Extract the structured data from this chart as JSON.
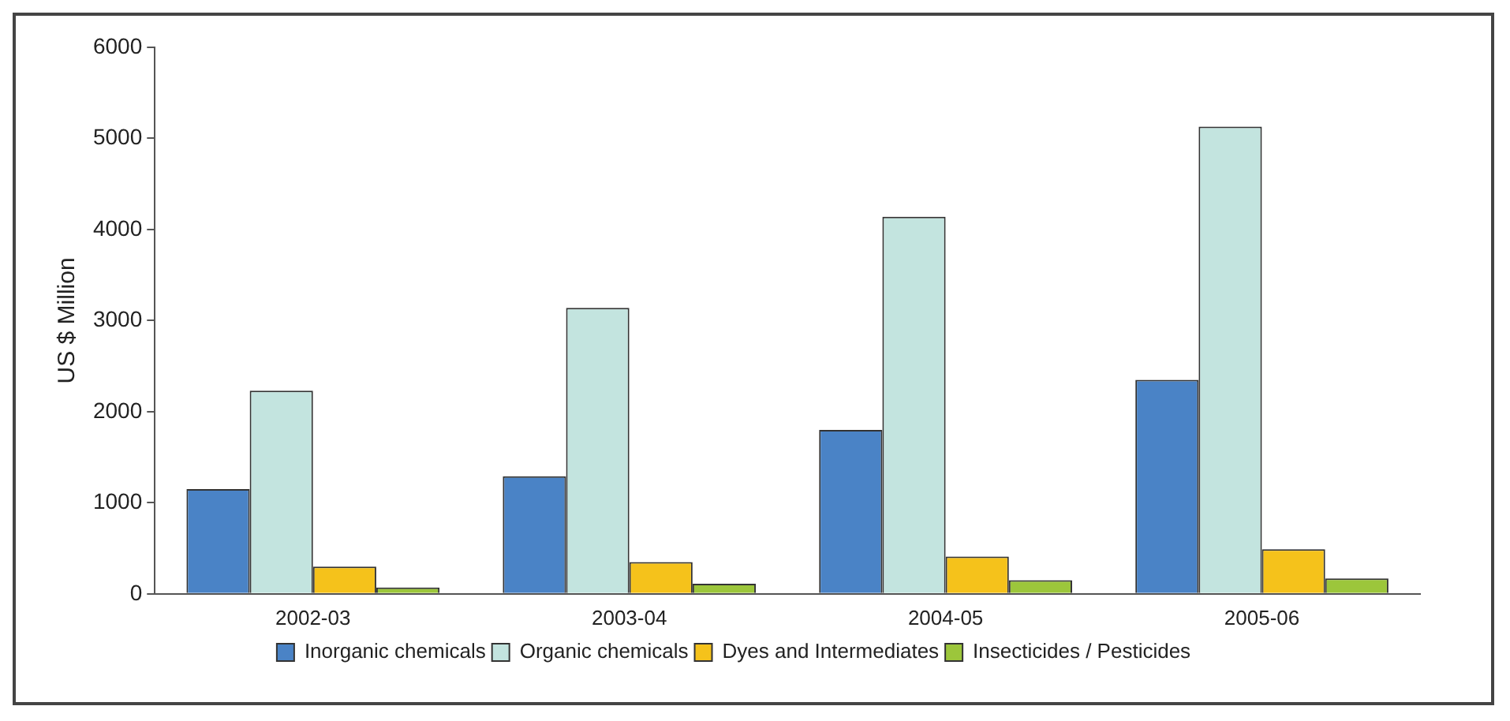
{
  "chart_data": {
    "type": "bar",
    "ylabel": "US $ Million",
    "categories": [
      "2002-03",
      "2003-04",
      "2004-05",
      "2005-06"
    ],
    "series": [
      {
        "name": "Inorganic chemicals",
        "color": "#4a83c6",
        "values": [
          1150,
          1290,
          1800,
          2350
        ]
      },
      {
        "name": "Organic chemicals",
        "color": "#c3e4df",
        "values": [
          2230,
          3140,
          4140,
          5130
        ]
      },
      {
        "name": "Dyes and Intermediates",
        "color": "#f5c21b",
        "values": [
          300,
          350,
          410,
          490
        ]
      },
      {
        "name": "Insecticides / Pesticides",
        "color": "#9cc63b",
        "values": [
          70,
          110,
          150,
          170
        ]
      }
    ],
    "ylim": [
      0,
      6000
    ],
    "yticks": [
      0,
      1000,
      2000,
      3000,
      4000,
      5000,
      6000
    ],
    "grid": false,
    "legend": "bottom"
  }
}
